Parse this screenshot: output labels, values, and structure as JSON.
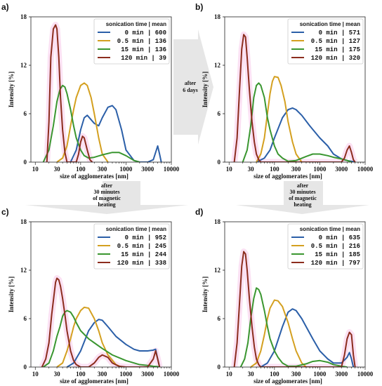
{
  "chart_data": [
    {
      "panel_label": "a)",
      "type": "line",
      "x_scale": "log",
      "xlim": [
        8,
        10000
      ],
      "ylim": [
        0,
        18
      ],
      "xticks": [
        "10",
        "30",
        "100",
        "300",
        "1000",
        "3000",
        "10000"
      ],
      "yticks": [
        "0",
        "6",
        "12",
        "18"
      ],
      "ylabel": "Intensity [%]",
      "xlabel": "size of agglomerates [nm]",
      "legend_title": "sonication time | mean",
      "legend_position": "top-right",
      "series": [
        {
          "name": "0 min | 600",
          "color": "#2b5fa8",
          "x": [
            60,
            80,
            100,
            120,
            140,
            200,
            250,
            300,
            400,
            500,
            600,
            800,
            1000,
            1500,
            2000,
            3000,
            4000,
            5000,
            5500,
            6000
          ],
          "y": [
            0,
            1.5,
            4,
            5.5,
            5.8,
            4.8,
            4.5,
            5.5,
            6.8,
            7,
            6.5,
            4,
            1.5,
            0.2,
            0,
            0,
            0.3,
            2,
            1,
            0
          ]
        },
        {
          "name": "0.5 min | 136",
          "color": "#d4a020",
          "x": [
            30,
            40,
            50,
            60,
            70,
            80,
            100,
            120,
            140,
            170,
            200,
            250,
            300,
            400
          ],
          "y": [
            0,
            0.5,
            2,
            4.5,
            6.5,
            8,
            9.5,
            9.8,
            9.5,
            8,
            6,
            3,
            1,
            0
          ]
        },
        {
          "name": "15 min | 136",
          "color": "#3a9630",
          "x": [
            15,
            20,
            25,
            30,
            35,
            40,
            45,
            50,
            60,
            70,
            80,
            100,
            120,
            150,
            200,
            300,
            500,
            700,
            1000,
            1500,
            2000
          ],
          "y": [
            0,
            1.5,
            4.5,
            7.5,
            9,
            9.5,
            9.3,
            8.5,
            6.5,
            4.5,
            3,
            1.5,
            0.8,
            0.5,
            0.6,
            0.9,
            1.2,
            1.2,
            0.8,
            0.2,
            0
          ]
        },
        {
          "name": "120 min | 39",
          "color": "#8c2d1e",
          "x": [
            18,
            20,
            22,
            25,
            28,
            30,
            33,
            36,
            40,
            45,
            50,
            60,
            70,
            80,
            90,
            100,
            110,
            120,
            140,
            160,
            180
          ],
          "y": [
            0,
            5,
            13,
            16.5,
            17,
            16.5,
            13,
            8,
            4,
            1.2,
            0,
            0,
            0,
            0,
            1,
            2.5,
            3.2,
            3,
            1.5,
            0.3,
            0
          ]
        }
      ]
    },
    {
      "panel_label": "b)",
      "type": "line",
      "x_scale": "log",
      "xlim": [
        8,
        10000
      ],
      "ylim": [
        0,
        18
      ],
      "xticks": [
        "10",
        "30",
        "100",
        "300",
        "1000",
        "3000",
        "10000"
      ],
      "yticks": [
        "0",
        "6",
        "12",
        "18"
      ],
      "ylabel": "Intensity [%]",
      "xlabel": "size of agglomerates [nm]",
      "legend_title": "sonication time | mean",
      "legend_position": "top-right",
      "series": [
        {
          "name": "0 min | 571",
          "color": "#2b5fa8",
          "x": [
            40,
            60,
            80,
            100,
            150,
            200,
            250,
            300,
            400,
            600,
            1000,
            1500,
            2000,
            3000,
            4000,
            5000,
            6000
          ],
          "y": [
            0,
            0.5,
            1.5,
            3,
            5.5,
            6.5,
            6.7,
            6.5,
            5.8,
            4.5,
            3,
            2,
            1,
            0.4,
            0.2,
            0.1,
            0
          ]
        },
        {
          "name": "0.5 min | 127",
          "color": "#d4a020",
          "x": [
            40,
            50,
            60,
            70,
            80,
            90,
            100,
            120,
            140,
            170,
            200,
            250,
            300,
            400
          ],
          "y": [
            0,
            1,
            3,
            6,
            8.5,
            10,
            10.6,
            10.5,
            9.5,
            7.5,
            5,
            2.5,
            1,
            0
          ]
        },
        {
          "name": "15 min | 175",
          "color": "#3a9630",
          "x": [
            20,
            25,
            30,
            35,
            40,
            45,
            50,
            60,
            70,
            80,
            100,
            120,
            150,
            200,
            300,
            500,
            700,
            1000,
            1500,
            2000,
            3000,
            4000,
            5000
          ],
          "y": [
            0,
            1.5,
            4.5,
            8,
            9.5,
            9.8,
            9.5,
            8,
            5.5,
            4,
            2,
            1,
            0.5,
            0.1,
            0.2,
            0.7,
            1,
            1,
            0.8,
            0.6,
            0.4,
            0.2,
            0
          ]
        },
        {
          "name": "120 min | 320",
          "color": "#8c2d1e",
          "x": [
            13,
            15,
            17,
            19,
            21,
            23,
            25,
            28,
            32,
            36,
            40,
            45,
            50,
            60,
            3000,
            3500,
            4000,
            4500,
            5000,
            5500,
            6000
          ],
          "y": [
            0,
            3,
            9,
            14,
            15.8,
            15.5,
            13,
            9,
            5,
            2.5,
            1,
            0.3,
            0,
            0,
            0,
            0.5,
            1.5,
            2,
            1.2,
            0.3,
            0
          ]
        }
      ]
    },
    {
      "panel_label": "c)",
      "type": "line",
      "x_scale": "log",
      "xlim": [
        8,
        10000
      ],
      "ylim": [
        0,
        18
      ],
      "xticks": [
        "10",
        "30",
        "100",
        "300",
        "1000",
        "3000",
        "10000"
      ],
      "yticks": [
        "0",
        "6",
        "12",
        "18"
      ],
      "ylabel": "Intensity [%]",
      "xlabel": "size of agglomerates [nm]",
      "legend_title": "sonication time | mean",
      "legend_position": "top-right",
      "series": [
        {
          "name": "0 min | 952",
          "color": "#2b5fa8",
          "x": [
            50,
            70,
            100,
            150,
            200,
            250,
            300,
            400,
            600,
            1000,
            1500,
            2000,
            3000,
            4000,
            4500,
            5000,
            5500
          ],
          "y": [
            0,
            0.5,
            2,
            4.5,
            5.5,
            5.9,
            5.8,
            5,
            3.8,
            2.8,
            2.2,
            2,
            2,
            2.1,
            2.2,
            1,
            0
          ]
        },
        {
          "name": "0.5 min | 245",
          "color": "#d4a020",
          "x": [
            30,
            40,
            50,
            60,
            70,
            80,
            100,
            120,
            150,
            200,
            250,
            300,
            400,
            600,
            800
          ],
          "y": [
            0,
            0.5,
            2,
            3.5,
            5,
            6,
            7,
            7.4,
            7.3,
            6,
            4.5,
            3,
            1.5,
            0.3,
            0
          ]
        },
        {
          "name": "15 min | 244",
          "color": "#3a9630",
          "x": [
            15,
            20,
            25,
            30,
            35,
            40,
            45,
            50,
            60,
            70,
            80,
            100,
            150,
            200,
            300,
            500,
            1000,
            2000,
            3000,
            4000,
            5000,
            5500
          ],
          "y": [
            0,
            0.5,
            2,
            3.8,
            5,
            6.3,
            6.8,
            7,
            6.8,
            6.2,
            5.5,
            4.5,
            3.5,
            3,
            2.3,
            1.5,
            0.8,
            0.3,
            0.2,
            0.1,
            0.05,
            0
          ]
        },
        {
          "name": "120 min | 338",
          "color": "#8c2d1e",
          "x": [
            14,
            17,
            20,
            23,
            26,
            28,
            30,
            33,
            36,
            40,
            45,
            50,
            60,
            70,
            80,
            100,
            150,
            200,
            250,
            300,
            400,
            500,
            700,
            1000,
            3000,
            4000,
            4500,
            5000,
            5500
          ],
          "y": [
            0,
            1,
            3,
            6.5,
            9,
            10.5,
            11,
            10.8,
            10,
            8.5,
            6.5,
            4.5,
            2,
            0.8,
            0.3,
            0,
            0,
            0.5,
            1.2,
            1.5,
            1.2,
            0.5,
            0.1,
            0,
            0,
            1,
            2,
            1,
            0
          ]
        }
      ]
    },
    {
      "panel_label": "d)",
      "type": "line",
      "x_scale": "log",
      "xlim": [
        8,
        10000
      ],
      "ylim": [
        0,
        18
      ],
      "xticks": [
        "10",
        "30",
        "100",
        "300",
        "1000",
        "3000",
        "10000"
      ],
      "yticks": [
        "0",
        "6",
        "12",
        "18"
      ],
      "ylabel": "Intensity [%]",
      "xlabel": "size of agglomerates [nm]",
      "legend_title": "sonication time | mean",
      "legend_position": "top-right",
      "series": [
        {
          "name": "0 min | 635",
          "color": "#2b5fa8",
          "x": [
            50,
            70,
            100,
            150,
            200,
            250,
            300,
            400,
            500,
            700,
            1000,
            1500,
            2000,
            3000,
            4000,
            4500,
            5000,
            5500
          ],
          "y": [
            0,
            0.5,
            2,
            5,
            6.8,
            7.2,
            7,
            6,
            5,
            3.5,
            2,
            1,
            0.5,
            0.5,
            1.2,
            1.8,
            1,
            0
          ]
        },
        {
          "name": "0.5 min | 216",
          "color": "#d4a020",
          "x": [
            30,
            40,
            50,
            60,
            70,
            80,
            100,
            120,
            150,
            200,
            250,
            300,
            400,
            500
          ],
          "y": [
            0,
            0.5,
            2,
            4,
            6,
            7.3,
            8.3,
            8.2,
            7.5,
            5.5,
            3.5,
            2,
            0.5,
            0
          ]
        },
        {
          "name": "15 min | 185",
          "color": "#3a9630",
          "x": [
            18,
            22,
            26,
            30,
            35,
            40,
            45,
            50,
            60,
            70,
            80,
            100,
            120,
            150,
            200,
            300,
            500,
            700,
            1000,
            1500,
            2000,
            3000,
            4000
          ],
          "y": [
            0,
            1,
            3,
            6,
            8.5,
            9.8,
            9.6,
            9,
            7,
            5,
            3.5,
            2,
            1.2,
            0.5,
            0.1,
            0.1,
            0.4,
            0.7,
            0.8,
            0.6,
            0.3,
            0.1,
            0
          ]
        },
        {
          "name": "120 min | 797",
          "color": "#8c2d1e",
          "x": [
            13,
            15,
            17,
            19,
            21,
            23,
            25,
            28,
            32,
            36,
            40,
            45,
            50,
            60,
            3000,
            3500,
            4000,
            4500,
            5000,
            5500,
            6000
          ],
          "y": [
            0,
            3,
            8,
            12.5,
            14.3,
            14,
            12,
            8.5,
            5,
            2.5,
            1,
            0.3,
            0,
            0,
            0,
            1.5,
            3.5,
            4.3,
            4,
            1.5,
            0
          ]
        }
      ]
    }
  ],
  "arrows": [
    {
      "lines": [
        "after",
        "6 days"
      ]
    },
    {
      "lines": [
        "after",
        "30 minutes",
        "of magnetic",
        "heating"
      ]
    },
    {
      "lines": [
        "after",
        "30 minutes",
        "of magnetic",
        "heating"
      ]
    }
  ]
}
